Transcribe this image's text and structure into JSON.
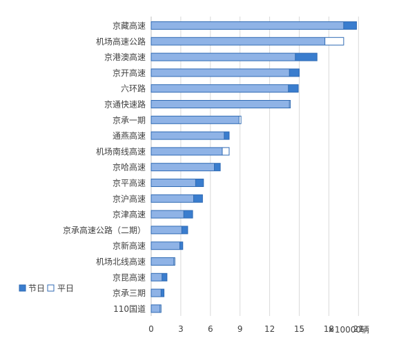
{
  "chart_data": {
    "type": "bar",
    "orientation": "horizontal",
    "bar_mode": "overlay",
    "categories": [
      "京藏高速",
      "机场高速公路",
      "京港澳高速",
      "京开高速",
      "六环路",
      "京通快速路",
      "京承一期",
      "通燕高速",
      "机场南线高速",
      "京哈高速",
      "京平高速",
      "京沪高速",
      "京津高速",
      "京承高速公路（二期）",
      "京新高速",
      "机场北线高速",
      "京昆高速",
      "京承三期",
      "110国道"
    ],
    "series": [
      {
        "name": "节日",
        "color": "#3a7dce",
        "values": [
          20.8,
          17.6,
          16.8,
          15.0,
          14.9,
          14.0,
          8.9,
          7.9,
          7.2,
          7.0,
          5.3,
          5.2,
          4.2,
          3.7,
          3.2,
          2.3,
          1.6,
          1.3,
          0.9
        ]
      },
      {
        "name": "平日",
        "color": "#ffffff",
        "values": [
          19.5,
          19.5,
          14.6,
          14.0,
          13.9,
          14.1,
          9.1,
          7.4,
          7.9,
          6.4,
          4.5,
          4.3,
          3.3,
          3.1,
          2.9,
          2.4,
          1.1,
          1.0,
          1.0
        ]
      }
    ],
    "xlim": [
      0,
      21
    ],
    "x_ticks": [
      "0",
      "3",
      "6",
      "9",
      "12",
      "15",
      "18",
      "21"
    ],
    "x_tick_values": [
      0,
      3,
      6,
      9,
      12,
      15,
      18,
      21
    ],
    "x_unit": "×10000辆",
    "grid": true,
    "legend": "left",
    "colors": {
      "holiday_fill": "#3a7dce",
      "overlap_fill": "#8fb3e6",
      "border": "#2f6ab3",
      "grid": "#d9d9d9",
      "axis": "#bfbfbf"
    }
  }
}
